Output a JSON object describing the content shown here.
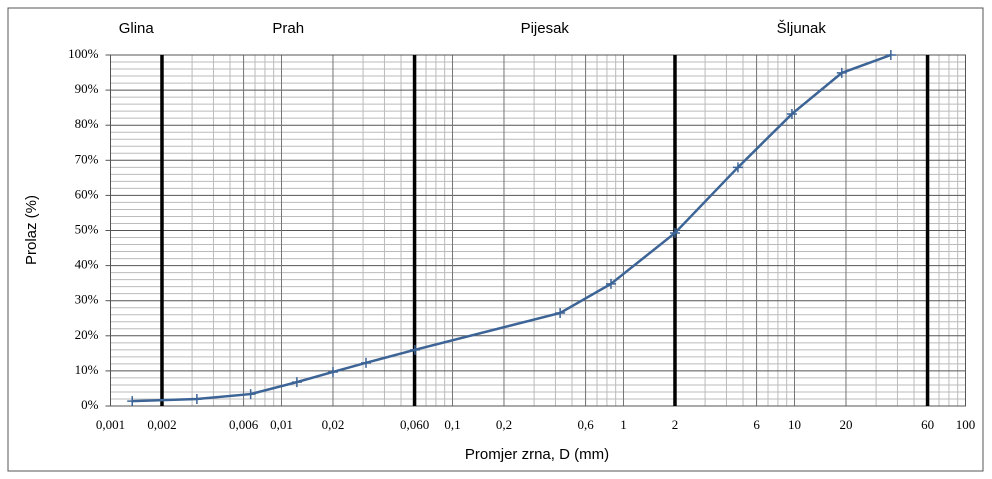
{
  "chart_data": {
    "type": "line",
    "x_label": "Promjer zrna, D (mm)",
    "y_label": "Prolaz  (%)",
    "log_x": true,
    "grid": true,
    "zones": [
      "Glina",
      "Prah",
      "Pijesak",
      "Šljunak"
    ],
    "boundaries": [
      0.002,
      0.06,
      2,
      60
    ],
    "xlim": [
      0.001,
      100
    ],
    "ylim": [
      0,
      100
    ],
    "xticks": [
      {
        "value": 0.001,
        "label": "0,001"
      },
      {
        "value": 0.002,
        "label": "0,002"
      },
      {
        "value": 0.006,
        "label": "0,006"
      },
      {
        "value": 0.01,
        "label": "0,01"
      },
      {
        "value": 0.02,
        "label": "0,02"
      },
      {
        "value": 0.06,
        "label": "0,060"
      },
      {
        "value": 0.1,
        "label": "0,1"
      },
      {
        "value": 0.2,
        "label": "0,2"
      },
      {
        "value": 0.6,
        "label": "0,6"
      },
      1,
      2,
      6,
      10,
      20,
      60,
      100
    ],
    "yticks": [
      {
        "value": 0,
        "label": "0%"
      },
      {
        "value": 10,
        "label": "10%"
      },
      {
        "value": 20,
        "label": "20%"
      },
      {
        "value": 30,
        "label": "30%"
      },
      {
        "value": 40,
        "label": "40%"
      },
      {
        "value": 50,
        "label": "50%"
      },
      {
        "value": 60,
        "label": "60%"
      },
      {
        "value": 70,
        "label": "70%"
      },
      {
        "value": 80,
        "label": "80%"
      },
      {
        "value": 90,
        "label": "90%"
      },
      {
        "value": 100,
        "label": "100%"
      }
    ],
    "series": [
      {
        "color": "#3d6496",
        "x": [
          0.00134,
          0.0032,
          0.0066,
          0.0123,
          0.02,
          0.0312,
          0.0603,
          0.426,
          0.845,
          2.0,
          4.67,
          9.66,
          18.9,
          36.6
        ],
        "values": [
          1.4,
          2,
          3.4,
          6.8,
          9.7,
          12.3,
          16,
          26.5,
          34.8,
          49.3,
          68,
          83.2,
          94.9,
          100
        ]
      }
    ]
  }
}
